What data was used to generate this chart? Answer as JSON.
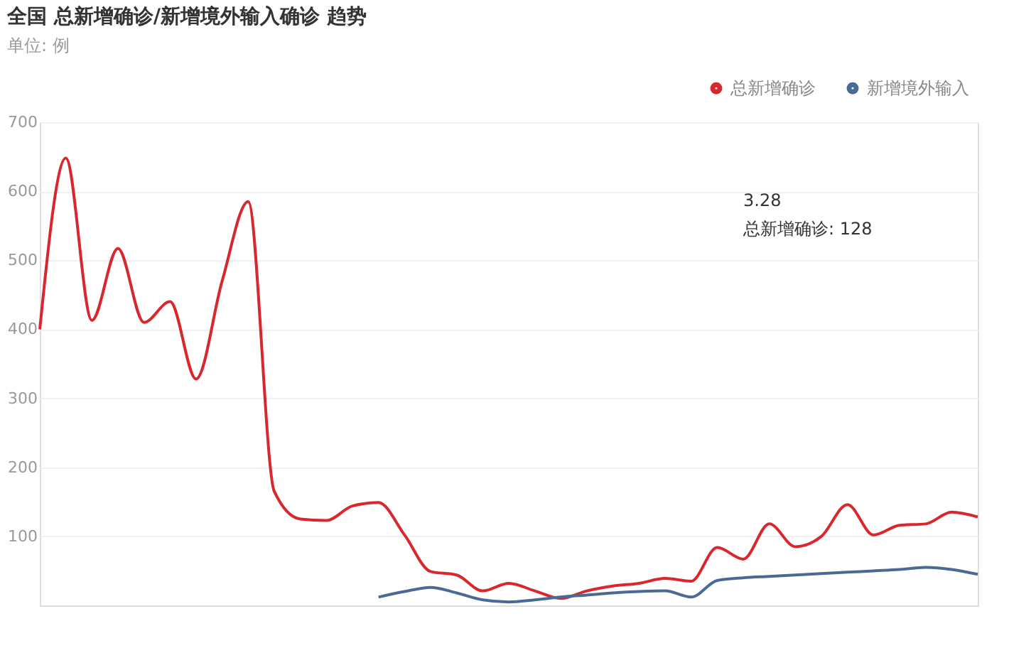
{
  "chart_data": {
    "type": "line",
    "title": "全国 总新增确诊/新增境外输入确诊 趋势",
    "subtitle": "单位: 例",
    "categories": [
      null,
      null,
      null,
      null,
      null,
      null,
      null,
      null,
      null,
      null,
      null,
      null,
      null,
      null,
      null,
      null,
      null,
      null,
      null,
      null,
      null,
      null,
      null,
      null,
      null,
      null,
      null,
      null,
      null,
      null,
      null,
      null,
      null,
      null,
      null,
      null,
      null
    ],
    "series": [
      {
        "name": "总新增确诊",
        "color": "#d9272e",
        "values": [
          400,
          648,
          413,
          517,
          410,
          440,
          328,
          470,
          585,
          165,
          125,
          123,
          144,
          149,
          102,
          49,
          44,
          21,
          32,
          21,
          10,
          21,
          28,
          32,
          39,
          35,
          84,
          67,
          118,
          85,
          100,
          146,
          102,
          116,
          118,
          135,
          128
        ]
      },
      {
        "name": "新增境外输入",
        "color": "#4a6a94",
        "values": [
          null,
          null,
          null,
          null,
          null,
          null,
          null,
          null,
          null,
          null,
          null,
          null,
          null,
          12,
          20,
          26,
          18,
          8,
          5,
          8,
          12,
          15,
          18,
          20,
          21,
          12,
          36,
          40,
          42,
          44,
          46,
          48,
          50,
          52,
          55,
          52,
          45
        ]
      }
    ],
    "ylim": [
      0,
      700
    ],
    "yticks": [
      100,
      200,
      300,
      400,
      500,
      600,
      700
    ],
    "grid": "y",
    "legend": "top right",
    "tick_labels": "y",
    "marker": "none",
    "line_style": "solid",
    "annotations": [
      "3.28",
      "总新增确诊: 128"
    ]
  }
}
